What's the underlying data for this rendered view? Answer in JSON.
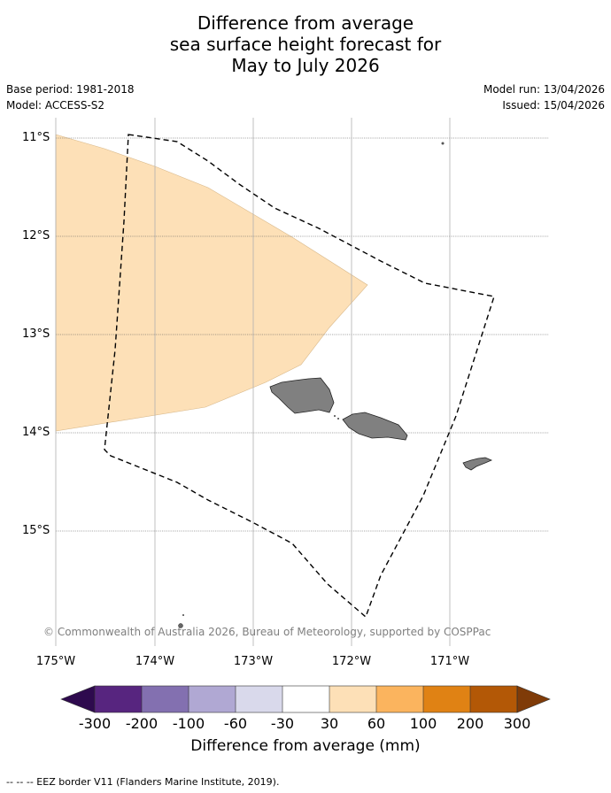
{
  "title": {
    "line1": "Difference from average",
    "line2": "sea surface height forecast for",
    "line3": "May to July 2026"
  },
  "meta": {
    "base_period": "Base period: 1981-2018",
    "model": "Model: ACCESS-S2",
    "model_run": "Model run: 13/04/2026",
    "issued": "Issued: 15/04/2026"
  },
  "map": {
    "lat_labels": [
      "11°S",
      "12°S",
      "13°S",
      "14°S",
      "15°S"
    ],
    "lon_labels": [
      "175°W",
      "174°W",
      "173°W",
      "172°W",
      "171°W"
    ],
    "copyright": "© Commonwealth of Australia 2026, Bureau of Meteorology, supported by COSPPac",
    "anomaly_category": "30 to 60 mm",
    "land_color": "#808080",
    "anomaly_color": "#fde0b7"
  },
  "colorbar": {
    "title": "Difference from average (mm)",
    "labels": [
      "-300",
      "-200",
      "-100",
      "-60",
      "-30",
      "30",
      "60",
      "100",
      "200",
      "300"
    ],
    "colors": [
      "#2e0a4e",
      "#57257f",
      "#8370b0",
      "#b0a8d3",
      "#d9d9eb",
      "#ffffff",
      "#fde0b7",
      "#fbb45e",
      "#e08214",
      "#b35806",
      "#7f3b08"
    ]
  },
  "footer": {
    "eez_legend": "--  --  -- EEZ border V11 (Flanders Marine Institute, 2019)."
  }
}
